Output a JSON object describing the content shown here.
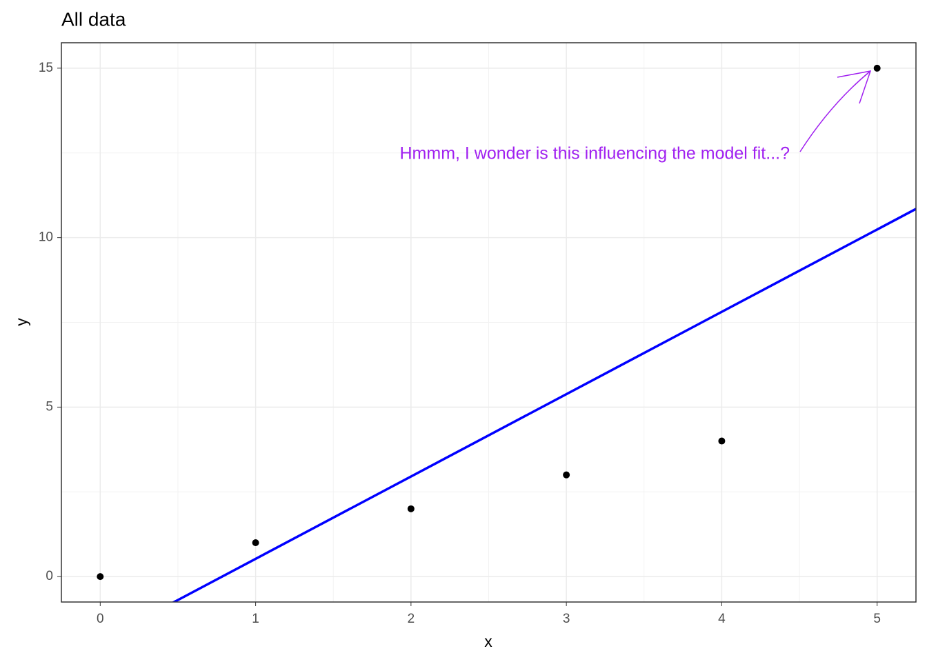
{
  "chart_data": {
    "type": "scatter",
    "title": "All data",
    "x_label": "x",
    "y_label": "y",
    "series": [
      {
        "x": [
          0,
          1,
          2,
          3,
          4,
          5
        ],
        "values": [
          0,
          1,
          2,
          3,
          4,
          15
        ],
        "color": "#000000"
      }
    ],
    "fit": {
      "intercept": -1.905,
      "slope": 2.429,
      "color": "#0000ff"
    },
    "annotation": {
      "text": "Hmmm, I wonder is this influencing the model fit...?",
      "color": "#a020f0"
    },
    "xlim": [
      -0.25,
      5.25
    ],
    "xticks": [
      0,
      1,
      2,
      3,
      4,
      5
    ],
    "ylim": [
      -0.75,
      15.75
    ],
    "yticks": [
      0,
      5,
      10,
      15
    ],
    "grid": true
  }
}
